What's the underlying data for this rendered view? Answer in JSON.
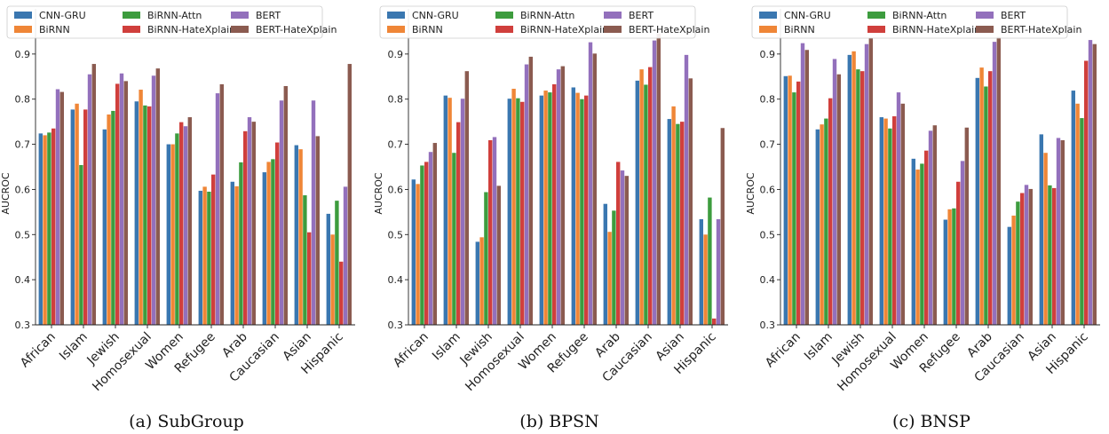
{
  "figure": {
    "captions": [
      "(a) SubGroup",
      "(b) BPSN",
      "(c) BNSP"
    ]
  },
  "chart_data": [
    {
      "type": "bar",
      "title": "",
      "caption": "(a) SubGroup",
      "xlabel": "",
      "ylabel": "AUCROC",
      "ylim": [
        0.3,
        1.0
      ],
      "yticks": [
        "0.3",
        "0.4",
        "0.5",
        "0.6",
        "0.7",
        "0.8",
        "0.9"
      ],
      "grid": false,
      "legend": "top",
      "categories": [
        "African",
        "Islam",
        "Jewish",
        "Homosexual",
        "Women",
        "Refugee",
        "Arab",
        "Caucasian",
        "Asian",
        "Hispanic"
      ],
      "series": [
        {
          "name": "CNN-GRU",
          "color": "#3a77b0",
          "values": [
            0.724,
            0.777,
            0.733,
            0.795,
            0.7,
            0.597,
            0.617,
            0.638,
            0.698,
            0.546
          ]
        },
        {
          "name": "BiRNN",
          "color": "#ef8637",
          "values": [
            0.72,
            0.79,
            0.766,
            0.821,
            0.7,
            0.606,
            0.607,
            0.661,
            0.689,
            0.5
          ]
        },
        {
          "name": "BiRNN-Attn",
          "color": "#3d9c3e",
          "values": [
            0.726,
            0.654,
            0.774,
            0.786,
            0.724,
            0.595,
            0.66,
            0.667,
            0.587,
            0.575
          ]
        },
        {
          "name": "BiRNN-HateXplain",
          "color": "#d03f3c",
          "values": [
            0.735,
            0.777,
            0.834,
            0.784,
            0.749,
            0.633,
            0.729,
            0.704,
            0.505,
            0.44
          ]
        },
        {
          "name": "BERT",
          "color": "#9370bc",
          "values": [
            0.822,
            0.855,
            0.857,
            0.852,
            0.74,
            0.813,
            0.76,
            0.797,
            0.797,
            0.606
          ]
        },
        {
          "name": "BERT-HateXplain",
          "color": "#8b5b50",
          "values": [
            0.816,
            0.878,
            0.84,
            0.868,
            0.76,
            0.833,
            0.75,
            0.829,
            0.718,
            0.878
          ]
        }
      ]
    },
    {
      "type": "bar",
      "title": "",
      "caption": "(b) BPSN",
      "xlabel": "",
      "ylabel": "AUCROC",
      "ylim": [
        0.3,
        1.0
      ],
      "yticks": [
        "0.3",
        "0.4",
        "0.5",
        "0.6",
        "0.7",
        "0.8",
        "0.9"
      ],
      "grid": false,
      "legend": "top",
      "categories": [
        "African",
        "Islam",
        "Jewish",
        "Homosexual",
        "Women",
        "Refugee",
        "Arab",
        "Caucasian",
        "Asian",
        "Hispanic"
      ],
      "series": [
        {
          "name": "CNN-GRU",
          "color": "#3a77b0",
          "values": [
            0.622,
            0.808,
            0.484,
            0.801,
            0.808,
            0.826,
            0.568,
            0.841,
            0.756,
            0.534
          ]
        },
        {
          "name": "BiRNN",
          "color": "#ef8637",
          "values": [
            0.612,
            0.803,
            0.494,
            0.823,
            0.819,
            0.814,
            0.506,
            0.866,
            0.784,
            0.5
          ]
        },
        {
          "name": "BiRNN-Attn",
          "color": "#3d9c3e",
          "values": [
            0.653,
            0.681,
            0.594,
            0.802,
            0.815,
            0.8,
            0.553,
            0.832,
            0.745,
            0.582
          ]
        },
        {
          "name": "BiRNN-HateXplain",
          "color": "#d03f3c",
          "values": [
            0.661,
            0.749,
            0.709,
            0.794,
            0.833,
            0.808,
            0.661,
            0.871,
            0.75,
            0.314
          ]
        },
        {
          "name": "BERT",
          "color": "#9370bc",
          "values": [
            0.683,
            0.801,
            0.716,
            0.877,
            0.866,
            0.926,
            0.642,
            0.93,
            0.898,
            0.534
          ]
        },
        {
          "name": "BERT-HateXplain",
          "color": "#8b5b50",
          "values": [
            0.703,
            0.862,
            0.608,
            0.894,
            0.873,
            0.901,
            0.63,
            0.945,
            0.846,
            0.736
          ]
        }
      ]
    },
    {
      "type": "bar",
      "title": "",
      "caption": "(c) BNSP",
      "xlabel": "",
      "ylabel": "AUCROC",
      "ylim": [
        0.3,
        1.0
      ],
      "yticks": [
        "0.3",
        "0.4",
        "0.5",
        "0.6",
        "0.7",
        "0.8",
        "0.9"
      ],
      "grid": false,
      "legend": "top",
      "categories": [
        "African",
        "Islam",
        "Jewish",
        "Homosexual",
        "Women",
        "Refugee",
        "Arab",
        "Caucasian",
        "Asian",
        "Hispanic"
      ],
      "series": [
        {
          "name": "CNN-GRU",
          "color": "#3a77b0",
          "values": [
            0.851,
            0.733,
            0.898,
            0.76,
            0.668,
            0.533,
            0.847,
            0.517,
            0.722,
            0.819
          ]
        },
        {
          "name": "BiRNN",
          "color": "#ef8637",
          "values": [
            0.852,
            0.744,
            0.906,
            0.757,
            0.644,
            0.556,
            0.87,
            0.542,
            0.681,
            0.79
          ]
        },
        {
          "name": "BiRNN-Attn",
          "color": "#3d9c3e",
          "values": [
            0.815,
            0.757,
            0.866,
            0.735,
            0.657,
            0.558,
            0.828,
            0.573,
            0.609,
            0.758
          ]
        },
        {
          "name": "BiRNN-HateXplain",
          "color": "#d03f3c",
          "values": [
            0.839,
            0.802,
            0.862,
            0.762,
            0.686,
            0.617,
            0.862,
            0.592,
            0.603,
            0.885
          ]
        },
        {
          "name": "BERT",
          "color": "#9370bc",
          "values": [
            0.924,
            0.889,
            0.922,
            0.815,
            0.73,
            0.663,
            0.927,
            0.61,
            0.714,
            0.931
          ]
        },
        {
          "name": "BERT-HateXplain",
          "color": "#8b5b50",
          "values": [
            0.909,
            0.855,
            0.935,
            0.79,
            0.742,
            0.737,
            0.938,
            0.601,
            0.709,
            0.922
          ]
        }
      ]
    }
  ]
}
